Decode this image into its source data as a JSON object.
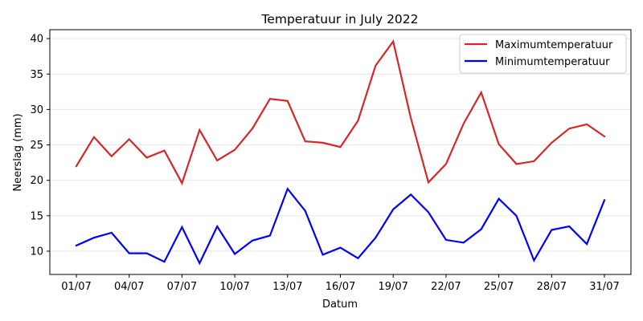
{
  "chart_data": {
    "type": "line",
    "title": "Temperatuur in July 2022",
    "xlabel": "Datum",
    "ylabel": "Neerslag (mm)",
    "x": [
      "01/07",
      "02/07",
      "03/07",
      "04/07",
      "05/07",
      "06/07",
      "07/07",
      "08/07",
      "09/07",
      "10/07",
      "11/07",
      "12/07",
      "13/07",
      "14/07",
      "15/07",
      "16/07",
      "17/07",
      "18/07",
      "19/07",
      "20/07",
      "21/07",
      "22/07",
      "23/07",
      "24/07",
      "25/07",
      "26/07",
      "27/07",
      "28/07",
      "29/07",
      "30/07",
      "31/07"
    ],
    "xticks": [
      "01/07",
      "04/07",
      "07/07",
      "10/07",
      "13/07",
      "16/07",
      "19/07",
      "22/07",
      "25/07",
      "28/07",
      "31/07"
    ],
    "yticks": [
      10,
      15,
      20,
      25,
      30,
      35,
      40
    ],
    "ylim": [
      6.7,
      41.2
    ],
    "grid": "horizontal",
    "legend_position": "upper right",
    "series": [
      {
        "name": "Maximumtemperatuur",
        "color": "#d62728",
        "values": [
          22.0,
          26.1,
          23.4,
          25.8,
          23.2,
          24.2,
          19.6,
          27.1,
          22.8,
          24.3,
          27.3,
          31.5,
          31.2,
          25.5,
          25.3,
          24.7,
          28.4,
          36.2,
          39.6,
          28.8,
          19.7,
          22.3,
          28.0,
          32.4,
          25.1,
          22.3,
          22.7,
          25.3,
          27.3,
          27.9,
          26.2
        ]
      },
      {
        "name": "Minimumtemperatuur",
        "color": "#0000ff",
        "values": [
          10.8,
          11.9,
          12.6,
          9.7,
          9.7,
          8.5,
          13.4,
          8.3,
          13.5,
          9.6,
          11.5,
          12.2,
          18.8,
          15.7,
          9.5,
          10.5,
          9.0,
          11.9,
          15.9,
          18.0,
          15.5,
          11.6,
          11.2,
          13.1,
          17.4,
          15.0,
          8.7,
          13.0,
          13.5,
          11.0,
          17.2
        ]
      }
    ]
  }
}
